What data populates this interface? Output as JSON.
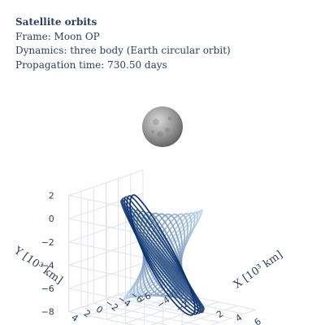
{
  "header": {
    "title": "Satellite orbits",
    "frame": "Frame: Moon OP",
    "dynamics": "Dynamics: three body (Earth circular orbit)",
    "propagation": "Propagation time: 730.50 days"
  },
  "chart_data": {
    "type": "line3d",
    "title": "Satellite orbits",
    "xlabel": "X [10³ km]",
    "ylabel": "Y [10³ km]",
    "zlabel": "",
    "xlim": [
      -6,
      6
    ],
    "ylim": [
      -6,
      6
    ],
    "zlim": [
      -8,
      2
    ],
    "xticks": [
      "−6",
      "−4",
      "−2",
      "0",
      "2",
      "4",
      "6"
    ],
    "yticks": [
      "−6",
      "−4",
      "−2",
      "0",
      "2",
      "4"
    ],
    "zticks": [
      "2",
      "0",
      "−2",
      "−4",
      "−6",
      "−8"
    ],
    "grid": true,
    "central_body": "Moon",
    "orbit_color_start": "#c6dbef",
    "orbit_color_end": "#08306b",
    "orbit_family": {
      "n_revolutions": 24,
      "apolune_z": 1.2,
      "perilune_z": -7.6,
      "ellipse_semi_major": 6.2,
      "ellipse_semi_minor": 4.4
    }
  }
}
